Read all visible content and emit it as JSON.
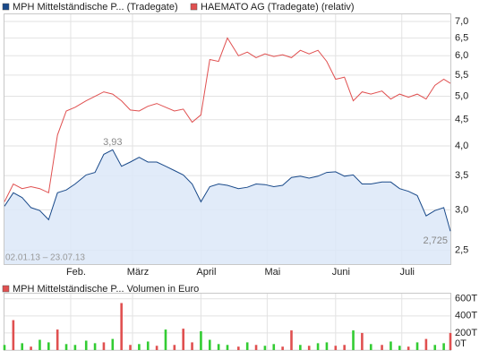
{
  "chart_data": [
    {
      "type": "line",
      "date_range": "02.01.13 – 23.07.13",
      "x": [
        "2013-01-02",
        "2013-01-06",
        "2013-01-10",
        "2013-01-14",
        "2013-01-18",
        "2013-01-22",
        "2013-01-26",
        "2013-01-30",
        "2013-02-03",
        "2013-02-08",
        "2013-02-12",
        "2013-02-16",
        "2013-02-20",
        "2013-02-24",
        "2013-02-28",
        "2013-03-04",
        "2013-03-08",
        "2013-03-12",
        "2013-03-16",
        "2013-03-20",
        "2013-03-24",
        "2013-03-28",
        "2013-04-01",
        "2013-04-05",
        "2013-04-09",
        "2013-04-13",
        "2013-04-18",
        "2013-04-22",
        "2013-04-26",
        "2013-04-30",
        "2013-05-04",
        "2013-05-08",
        "2013-05-12",
        "2013-05-16",
        "2013-05-20",
        "2013-05-24",
        "2013-05-28",
        "2013-06-01",
        "2013-06-05",
        "2013-06-09",
        "2013-06-13",
        "2013-06-17",
        "2013-06-22",
        "2013-06-26",
        "2013-06-30",
        "2013-07-04",
        "2013-07-08",
        "2013-07-12",
        "2013-07-16",
        "2013-07-20",
        "2013-07-23"
      ],
      "series": [
        {
          "name": "MPH Mittelständische P... (Tradegate)",
          "color": "#1a4a8a",
          "area_color": "#dce8f8",
          "values": [
            3.05,
            3.24,
            3.17,
            3.03,
            2.99,
            2.87,
            3.24,
            3.28,
            3.37,
            3.51,
            3.55,
            3.85,
            3.93,
            3.65,
            3.72,
            3.8,
            3.72,
            3.72,
            3.65,
            3.58,
            3.51,
            3.37,
            3.11,
            3.33,
            3.37,
            3.35,
            3.3,
            3.32,
            3.37,
            3.36,
            3.33,
            3.35,
            3.47,
            3.49,
            3.46,
            3.49,
            3.55,
            3.56,
            3.49,
            3.51,
            3.37,
            3.37,
            3.4,
            3.4,
            3.3,
            3.26,
            3.2,
            2.92,
            2.99,
            3.03,
            2.725
          ]
        },
        {
          "name": "HAEMATO AG (Tradegate) (relativ)",
          "color": "#e05050",
          "values": [
            3.11,
            3.37,
            3.3,
            3.33,
            3.3,
            3.24,
            4.2,
            4.68,
            4.76,
            4.9,
            5.0,
            5.1,
            5.05,
            4.9,
            4.7,
            4.68,
            4.78,
            4.84,
            4.76,
            4.68,
            4.72,
            4.45,
            4.6,
            5.9,
            5.85,
            6.5,
            6.0,
            6.1,
            5.95,
            6.05,
            5.98,
            6.03,
            5.95,
            6.15,
            6.05,
            6.15,
            5.85,
            5.4,
            5.45,
            4.9,
            5.1,
            5.05,
            5.12,
            4.94,
            5.05,
            4.98,
            5.05,
            4.94,
            5.25,
            5.4,
            5.3
          ]
        }
      ],
      "annotations": [
        {
          "x": "2013-02-20",
          "value": 3.93,
          "label": "3,93"
        },
        {
          "x": "2013-07-23",
          "value": 2.725,
          "label": "2,725"
        }
      ],
      "xlim": [
        "2013-01-02",
        "2013-07-23"
      ],
      "xticks": [
        {
          "value": "2013-02-01",
          "label": "Feb."
        },
        {
          "value": "2013-03-01",
          "label": "März"
        },
        {
          "value": "2013-04-01",
          "label": "April"
        },
        {
          "value": "2013-05-01",
          "label": "Mai"
        },
        {
          "value": "2013-06-01",
          "label": "Juni"
        },
        {
          "value": "2013-07-01",
          "label": "Juli"
        }
      ],
      "ylim": [
        2.35,
        7.23
      ],
      "yticks": [
        {
          "value": 2.5,
          "label": "2,5"
        },
        {
          "value": 3,
          "label": "3,0"
        },
        {
          "value": 3.5,
          "label": "3,5"
        },
        {
          "value": 4,
          "label": "4,0"
        },
        {
          "value": 4.5,
          "label": "4,5"
        },
        {
          "value": 5,
          "label": "5,0"
        },
        {
          "value": 5.5,
          "label": "5,5"
        },
        {
          "value": 6,
          "label": "6,0"
        },
        {
          "value": 6.5,
          "label": "6,5"
        },
        {
          "value": 7,
          "label": "7,0"
        }
      ],
      "log_scale": true,
      "grid": true
    },
    {
      "type": "bar",
      "series": [
        {
          "name": "MPH Mittelständische P... Volumen in Euro",
          "color": "#e05050",
          "values": [
            60000,
            350000,
            80000,
            40000,
            120000,
            90000,
            240000,
            70000,
            60000,
            110000,
            80000,
            90000,
            130000,
            550000,
            60000,
            70000,
            100000,
            50000,
            240000,
            60000,
            250000,
            90000,
            220000,
            120000,
            70000,
            60000,
            40000,
            90000,
            60000,
            50000,
            70000,
            40000,
            230000,
            60000,
            50000,
            80000,
            90000,
            50000,
            60000,
            230000,
            200000,
            70000,
            60000,
            100000,
            50000,
            40000,
            90000,
            130000,
            60000,
            80000,
            200000
          ],
          "colors": [
            "#33cc33",
            "#e05050",
            "#33cc33",
            "#e05050",
            "#33cc33",
            "#33cc33",
            "#e05050",
            "#33cc33",
            "#33cc33",
            "#33cc33",
            "#33cc33",
            "#e05050",
            "#33cc33",
            "#e05050",
            "#e05050",
            "#33cc33",
            "#33cc33",
            "#e05050",
            "#33cc33",
            "#e05050",
            "#e05050",
            "#e05050",
            "#33cc33",
            "#33cc33",
            "#33cc33",
            "#33cc33",
            "#e05050",
            "#33cc33",
            "#e05050",
            "#33cc33",
            "#33cc33",
            "#e05050",
            "#e05050",
            "#33cc33",
            "#e05050",
            "#33cc33",
            "#33cc33",
            "#e05050",
            "#e05050",
            "#33cc33",
            "#e05050",
            "#33cc33",
            "#e05050",
            "#33cc33",
            "#33cc33",
            "#e05050",
            "#33cc33",
            "#e05050",
            "#33cc33",
            "#33cc33",
            "#e05050"
          ]
        }
      ],
      "ylim": [
        0,
        660000
      ],
      "yticks": [
        {
          "value": 0,
          "label": "0T"
        },
        {
          "value": 200000,
          "label": "200T"
        },
        {
          "value": 400000,
          "label": "400T"
        },
        {
          "value": 600000,
          "label": "600T"
        }
      ],
      "grid": true
    }
  ]
}
